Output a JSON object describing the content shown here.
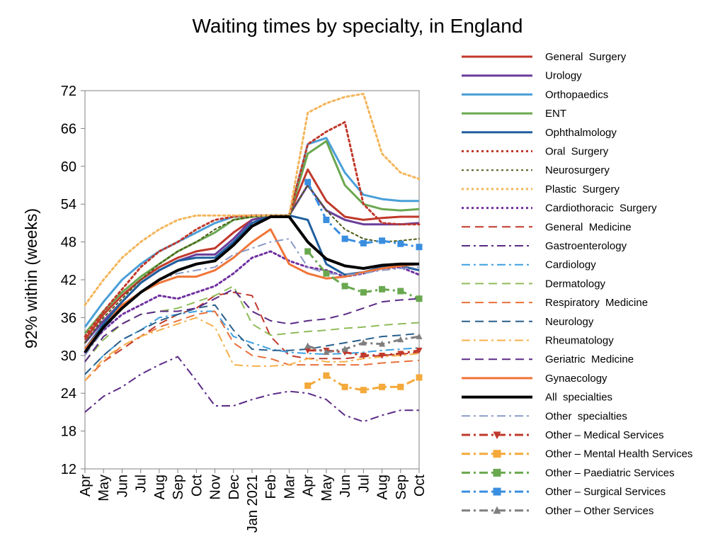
{
  "chart_data": {
    "type": "line",
    "title": "Waiting times by specialty, in England",
    "ylabel": "92% within (weeks)",
    "xlabel": "",
    "ylim": [
      12,
      72
    ],
    "yticks": [
      12,
      18,
      24,
      30,
      36,
      42,
      48,
      54,
      60,
      66,
      72
    ],
    "categories": [
      "Apr",
      "May",
      "Jun",
      "Jul",
      "Aug",
      "Sep",
      "Oct",
      "Nov",
      "Dec",
      "Jan 2021",
      "Feb",
      "Mar",
      "Apr",
      "May",
      "Jun",
      "Jul",
      "Aug",
      "Sep",
      "Oct"
    ],
    "grid": false,
    "legend_position": "right",
    "series": [
      {
        "name": "General  Surgery",
        "color": "#c0392b",
        "style": "solid",
        "width": 3,
        "values": [
          32.5,
          36.5,
          39.5,
          42,
          44,
          45.5,
          46.5,
          47,
          49.5,
          51.5,
          52.2,
          52.2,
          59.5,
          54.5,
          52,
          51.5,
          51.8,
          52,
          52
        ]
      },
      {
        "name": "Urology",
        "color": "#6a3d9a",
        "style": "solid",
        "width": 3,
        "values": [
          32,
          35.5,
          38.5,
          41.5,
          43.5,
          45,
          46,
          46,
          48.5,
          51.5,
          52.2,
          52.2,
          57,
          53,
          51.5,
          50.8,
          50.8,
          50.8,
          51
        ]
      },
      {
        "name": "Orthopaedics",
        "color": "#4a9fd8",
        "style": "solid",
        "width": 3,
        "values": [
          34.5,
          38.5,
          42,
          44.5,
          46.5,
          48,
          49.5,
          51,
          52,
          52.2,
          52.2,
          52.2,
          63.5,
          64.5,
          59,
          55.5,
          54.8,
          54.5,
          54.5
        ]
      },
      {
        "name": "ENT",
        "color": "#6aa84f",
        "style": "solid",
        "width": 3,
        "values": [
          33.5,
          37,
          40,
          42.5,
          44.5,
          46.5,
          48,
          49.5,
          51.5,
          52,
          52.2,
          52.2,
          62,
          64,
          57,
          54,
          53.2,
          53,
          53.2
        ]
      },
      {
        "name": "Ophthalmology",
        "color": "#1f5f9e",
        "style": "solid",
        "width": 3,
        "values": [
          31,
          35,
          38.5,
          41.5,
          43.5,
          45,
          45.5,
          45.5,
          48,
          51,
          52.2,
          52.2,
          51.5,
          44.5,
          42.8,
          43.2,
          44,
          44.2,
          43.5
        ]
      },
      {
        "name": "Oral  Surgery",
        "color": "#c0392b",
        "style": "dot",
        "width": 3,
        "values": [
          33,
          37,
          40.5,
          44,
          46.5,
          48,
          50,
          51.5,
          52,
          52.2,
          52.2,
          52.2,
          63.5,
          65.5,
          67,
          54,
          51,
          50.8,
          50.8
        ]
      },
      {
        "name": "Neurosurgery",
        "color": "#4d5a1a",
        "style": "dot",
        "width": 2,
        "values": [
          32,
          36,
          39,
          42,
          44.5,
          46.5,
          48,
          50,
          51.5,
          52,
          52.2,
          52.2,
          57,
          53,
          50,
          48.5,
          48,
          48.2,
          48.5
        ]
      },
      {
        "name": "Plastic  Surgery",
        "color": "#f4b55a",
        "style": "dot",
        "width": 3,
        "values": [
          38,
          42,
          45.5,
          48,
          50,
          51.5,
          52.2,
          52.2,
          52.2,
          52.2,
          52.2,
          52.2,
          68.5,
          70,
          71,
          71.5,
          62,
          59,
          58
        ]
      },
      {
        "name": "Cardiothoracic  Surgery",
        "color": "#7030a0",
        "style": "dot",
        "width": 3,
        "values": [
          30.5,
          34,
          36.5,
          38,
          39.5,
          39,
          40,
          41,
          43,
          45.5,
          46.5,
          45,
          44,
          43.5,
          42.5,
          43,
          43.8,
          44,
          42.8
        ]
      },
      {
        "name": "General  Medicine",
        "color": "#c0392b",
        "style": "dash",
        "width": 2,
        "values": [
          26,
          29,
          31,
          33,
          35,
          36.5,
          37.5,
          39.5,
          40,
          39.5,
          33,
          30,
          29.5,
          29.5,
          29.5,
          29.8,
          30,
          30.2,
          30.5
        ]
      },
      {
        "name": "Gastroenterology",
        "color": "#5b2a86",
        "style": "dashdot",
        "width": 2,
        "values": [
          21,
          23.5,
          25,
          27,
          28.5,
          29.8,
          26,
          22,
          22,
          23,
          23.8,
          24.3,
          24,
          23,
          20.5,
          19.5,
          20.5,
          21.3,
          21.3
        ]
      },
      {
        "name": "Cardiology",
        "color": "#3da0e0",
        "style": "dashdot",
        "width": 2,
        "values": [
          27,
          30,
          32.5,
          34,
          36,
          36.5,
          37,
          37,
          33,
          32,
          31,
          30.5,
          30.3,
          30.2,
          30.3,
          30.5,
          30.8,
          31,
          31.2
        ]
      },
      {
        "name": "Dermatology",
        "color": "#8fbc5a",
        "style": "dash",
        "width": 2,
        "values": [
          29,
          32.5,
          35,
          36.5,
          37,
          37.5,
          38.5,
          39.5,
          41,
          35,
          33.2,
          33.5,
          33.8,
          34,
          34.3,
          34.5,
          34.8,
          35,
          35.2
        ]
      },
      {
        "name": "Respiratory  Medicine",
        "color": "#e8703a",
        "style": "dash",
        "width": 2,
        "values": [
          26,
          29,
          31.5,
          33,
          34.5,
          35.5,
          36.5,
          37,
          32,
          30,
          29.5,
          28.5,
          28.5,
          28.5,
          28.5,
          28.5,
          28.8,
          29,
          29.2
        ]
      },
      {
        "name": "Neurology",
        "color": "#2a5f8a",
        "style": "dash",
        "width": 2,
        "values": [
          27,
          30,
          32.5,
          34,
          35.5,
          36.5,
          37.5,
          38,
          34,
          31,
          30.8,
          30.8,
          31,
          31.5,
          32,
          32.5,
          33,
          33.2,
          33.5
        ]
      },
      {
        "name": "Rheumatology",
        "color": "#f6b04a",
        "style": "dashdot",
        "width": 2,
        "values": [
          26,
          29.5,
          31.5,
          33,
          34,
          35,
          36,
          34.5,
          28.5,
          28.3,
          28.3,
          28.5,
          29.5,
          29,
          29,
          29.5,
          29.8,
          30,
          30.3
        ]
      },
      {
        "name": "Geriatric  Medicine",
        "color": "#5b2a86",
        "style": "dash",
        "width": 2,
        "values": [
          29,
          33,
          35,
          36.5,
          37,
          37,
          37.5,
          39,
          40.5,
          37,
          35.5,
          35,
          35.5,
          35.8,
          36.5,
          37.5,
          38.5,
          38.8,
          39
        ]
      },
      {
        "name": "Gynaecology",
        "color": "#f07538",
        "style": "solid",
        "width": 3,
        "values": [
          31,
          34.5,
          38,
          40,
          41.5,
          42.5,
          42.5,
          43.5,
          45.5,
          48,
          50,
          44.5,
          43,
          42.2,
          42.5,
          43.2,
          43.8,
          44.2,
          44.5
        ]
      },
      {
        "name": "All  specialties",
        "color": "#000000",
        "style": "solid",
        "width": 4,
        "values": [
          30.5,
          34.5,
          37.5,
          40,
          42,
          43.5,
          44.5,
          45,
          47.5,
          50.5,
          52,
          52,
          48,
          45.3,
          44.2,
          43.8,
          44.3,
          44.5,
          44.5
        ]
      },
      {
        "name": "Other  specialties",
        "color": "#8a9ac8",
        "style": "dashdot",
        "width": 2,
        "values": [
          30,
          34,
          37.5,
          40,
          42,
          43,
          43.5,
          44,
          46,
          47,
          48,
          48.5,
          44,
          43,
          42.8,
          43,
          43.5,
          43.8,
          44
        ]
      },
      {
        "name": "Other – Medical Services",
        "color": "#c0392b",
        "style": "dashdot",
        "width": 3,
        "marker": "triangle-down",
        "values": [
          null,
          null,
          null,
          null,
          null,
          null,
          null,
          null,
          null,
          null,
          null,
          null,
          30.8,
          30.8,
          30.5,
          30,
          30,
          30.3,
          30.8
        ]
      },
      {
        "name": "Other – Mental Health Services",
        "color": "#f4a93a",
        "style": "dashdot",
        "width": 3,
        "marker": "square",
        "values": [
          null,
          null,
          null,
          null,
          null,
          null,
          null,
          null,
          null,
          null,
          null,
          null,
          25.2,
          26.8,
          25,
          24.5,
          25,
          25,
          26.5
        ]
      },
      {
        "name": "Other – Paediatric Services",
        "color": "#6aa84f",
        "style": "dashdot",
        "width": 3,
        "marker": "square",
        "values": [
          null,
          null,
          null,
          null,
          null,
          null,
          null,
          null,
          null,
          null,
          null,
          null,
          46.5,
          43,
          41,
          40,
          40.5,
          40.2,
          39
        ]
      },
      {
        "name": "Other – Surgical Services",
        "color": "#3a8ee0",
        "style": "dashdot",
        "width": 3,
        "marker": "square",
        "values": [
          null,
          null,
          null,
          null,
          null,
          null,
          null,
          null,
          null,
          null,
          null,
          null,
          57.5,
          51.5,
          48.5,
          47.8,
          48.2,
          47.7,
          47.2
        ]
      },
      {
        "name": "Other – Other Services",
        "color": "#7f7f7f",
        "style": "dashdot",
        "width": 3,
        "marker": "triangle-up",
        "values": [
          null,
          null,
          null,
          null,
          null,
          null,
          null,
          null,
          null,
          null,
          null,
          null,
          31.5,
          30.5,
          31,
          32,
          31.8,
          32.5,
          33
        ]
      }
    ]
  }
}
